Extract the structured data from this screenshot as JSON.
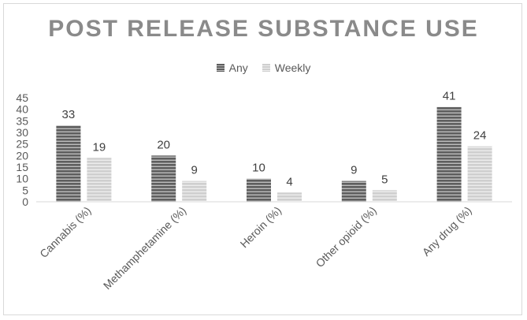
{
  "chart_data": {
    "type": "bar",
    "title": "POST RELEASE SUBSTANCE USE",
    "categories": [
      "Cannabis (%)",
      "Methamphetamine (%)",
      "Heroin (%)",
      "Other opioid (%)",
      "Any drug (%)"
    ],
    "series": [
      {
        "name": "Any",
        "values": [
          33,
          20,
          10,
          9,
          41
        ],
        "color": "#6b6b6b"
      },
      {
        "name": "Weekly",
        "values": [
          19,
          9,
          4,
          5,
          24
        ],
        "color": "#c9c9c9"
      }
    ],
    "xlabel": "",
    "ylabel": "",
    "ylim": [
      0,
      45
    ],
    "yticks": [
      0,
      5,
      10,
      15,
      20,
      25,
      30,
      35,
      40,
      45
    ],
    "grid": false,
    "legend": "top-center",
    "data_labels": true
  }
}
